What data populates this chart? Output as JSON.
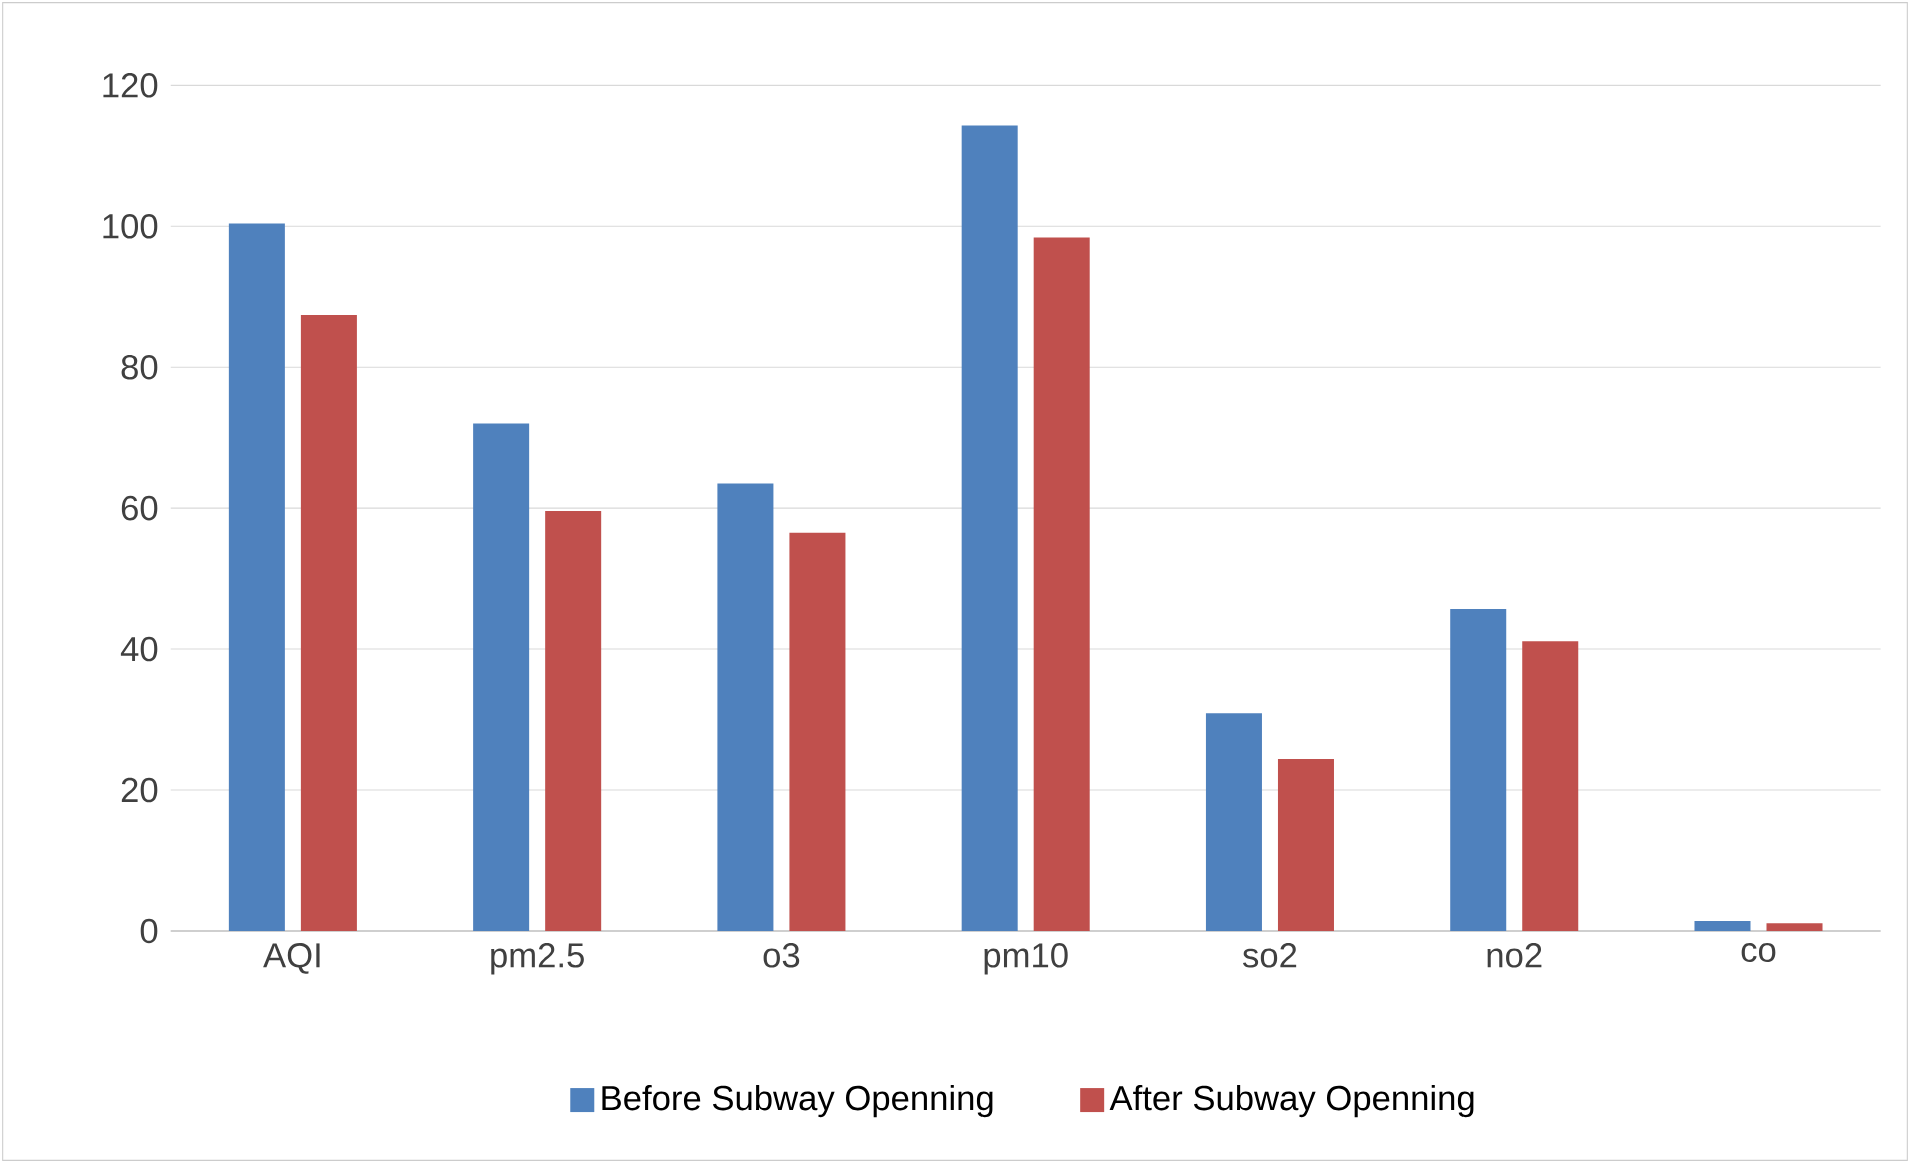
{
  "chart_data": {
    "type": "bar",
    "categories": [
      "AQI",
      "pm2.5",
      "o3",
      "pm10",
      "so2",
      "no2",
      "co"
    ],
    "series": [
      {
        "name": "Before Subway Openning",
        "color": "#4f81bd",
        "values": [
          100.4,
          72,
          63.5,
          114.3,
          30.9,
          45.7,
          1.4
        ]
      },
      {
        "name": "After Subway Openning",
        "color": "#c0504d",
        "values": [
          87.4,
          59.6,
          56.5,
          98.4,
          24.4,
          41.1,
          1.1
        ]
      }
    ],
    "ylim": [
      0,
      120
    ],
    "yticks": [
      0,
      20,
      40,
      60,
      80,
      100,
      120
    ],
    "grid": "y",
    "legend": "bottom"
  }
}
